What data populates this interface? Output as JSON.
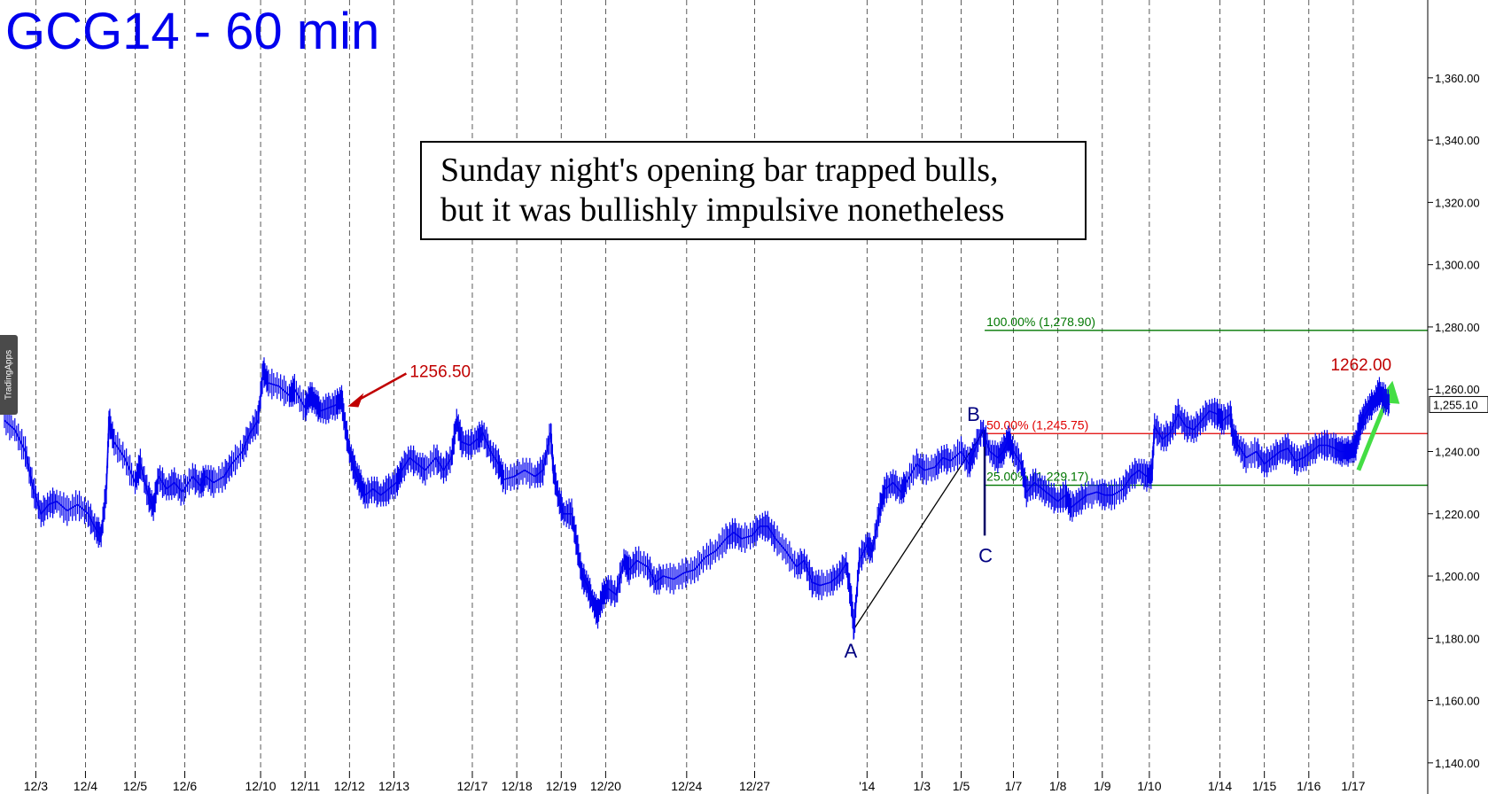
{
  "chart_data": {
    "type": "line",
    "title": "GCG14 - 60 min",
    "annotation": [
      "Sunday night's opening bar trapped bulls,",
      "but it was bullishly impulsive nonetheless"
    ],
    "y_axis": {
      "range": [
        1130,
        1385
      ],
      "ticks": [
        1140,
        1160,
        1180,
        1200,
        1220,
        1240,
        1260,
        1280,
        1300,
        1320,
        1340,
        1360
      ],
      "tick_labels": [
        "1,140.00",
        "1,160.00",
        "1,180.00",
        "1,200.00",
        "1,220.00",
        "1,240.00",
        "1,260.00",
        "1,280.00",
        "1,300.00",
        "1,320.00",
        "1,340.00",
        "1,360.00"
      ],
      "side": "right",
      "last_price": "1,255.10"
    },
    "x_axis": {
      "type": "session index (hourly, 25 sessions)",
      "range": [
        0,
        25.3
      ],
      "ticks": [
        {
          "x": 0.6,
          "label": "12/3"
        },
        {
          "x": 1.55,
          "label": "12/4"
        },
        {
          "x": 2.5,
          "label": "12/5"
        },
        {
          "x": 3.45,
          "label": "12/6"
        },
        {
          "x": 4.9,
          "label": "12/10"
        },
        {
          "x": 5.75,
          "label": "12/11"
        },
        {
          "x": 6.6,
          "label": "12/12"
        },
        {
          "x": 7.45,
          "label": "12/13"
        },
        {
          "x": 8.95,
          "label": "12/17"
        },
        {
          "x": 9.8,
          "label": "12/18"
        },
        {
          "x": 10.65,
          "label": "12/19"
        },
        {
          "x": 11.5,
          "label": "12/20"
        },
        {
          "x": 13.05,
          "label": "12/24"
        },
        {
          "x": 14.35,
          "label": "12/27"
        },
        {
          "x": 16.5,
          "label": "'14"
        },
        {
          "x": 17.55,
          "label": "1/3"
        },
        {
          "x": 18.3,
          "label": "1/5"
        },
        {
          "x": 19.3,
          "label": "1/7"
        },
        {
          "x": 20.15,
          "label": "1/8"
        },
        {
          "x": 21.0,
          "label": "1/9"
        },
        {
          "x": 21.9,
          "label": "1/10"
        },
        {
          "x": 23.25,
          "label": "1/14"
        },
        {
          "x": 24.1,
          "label": "1/15"
        },
        {
          "x": 24.95,
          "label": "1/16"
        },
        {
          "x": 25.8,
          "label": "1/17"
        }
      ]
    },
    "series": [
      {
        "color": "#0000ee",
        "points": [
          [
            0.0,
            1250
          ],
          [
            0.2,
            1247
          ],
          [
            0.4,
            1240
          ],
          [
            0.55,
            1228
          ],
          [
            0.7,
            1220
          ],
          [
            0.85,
            1223
          ],
          [
            1.0,
            1224
          ],
          [
            1.2,
            1221
          ],
          [
            1.4,
            1223
          ],
          [
            1.6,
            1220
          ],
          [
            1.75,
            1215
          ],
          [
            1.85,
            1213
          ],
          [
            1.95,
            1228
          ],
          [
            2.0,
            1250
          ],
          [
            2.1,
            1243
          ],
          [
            2.3,
            1238
          ],
          [
            2.5,
            1230
          ],
          [
            2.6,
            1236
          ],
          [
            2.75,
            1226
          ],
          [
            2.85,
            1222
          ],
          [
            2.95,
            1232
          ],
          [
            3.1,
            1228
          ],
          [
            3.25,
            1230
          ],
          [
            3.4,
            1227
          ],
          [
            3.6,
            1232
          ],
          [
            3.75,
            1229
          ],
          [
            3.85,
            1232
          ],
          [
            4.0,
            1230
          ],
          [
            4.2,
            1232
          ],
          [
            4.35,
            1236
          ],
          [
            4.55,
            1240
          ],
          [
            4.7,
            1246
          ],
          [
            4.85,
            1250
          ],
          [
            4.95,
            1266
          ],
          [
            5.05,
            1262
          ],
          [
            5.25,
            1261
          ],
          [
            5.45,
            1258
          ],
          [
            5.55,
            1260
          ],
          [
            5.75,
            1254
          ],
          [
            5.85,
            1258
          ],
          [
            5.95,
            1256
          ],
          [
            6.05,
            1253
          ],
          [
            6.2,
            1254
          ],
          [
            6.35,
            1255
          ],
          [
            6.45,
            1257
          ],
          [
            6.5,
            1250
          ],
          [
            6.6,
            1240
          ],
          [
            6.7,
            1234
          ],
          [
            6.8,
            1230
          ],
          [
            6.9,
            1226
          ],
          [
            7.05,
            1228
          ],
          [
            7.2,
            1226
          ],
          [
            7.35,
            1228
          ],
          [
            7.5,
            1230
          ],
          [
            7.6,
            1234
          ],
          [
            7.75,
            1238
          ],
          [
            7.9,
            1236
          ],
          [
            8.05,
            1234
          ],
          [
            8.25,
            1238
          ],
          [
            8.4,
            1234
          ],
          [
            8.55,
            1238
          ],
          [
            8.65,
            1250
          ],
          [
            8.75,
            1243
          ],
          [
            8.9,
            1242
          ],
          [
            9.05,
            1244
          ],
          [
            9.15,
            1246
          ],
          [
            9.3,
            1240
          ],
          [
            9.45,
            1236
          ],
          [
            9.55,
            1231
          ],
          [
            9.75,
            1232
          ],
          [
            9.95,
            1234
          ],
          [
            10.15,
            1232
          ],
          [
            10.3,
            1234
          ],
          [
            10.45,
            1246
          ],
          [
            10.5,
            1234
          ],
          [
            10.6,
            1225
          ],
          [
            10.7,
            1220
          ],
          [
            10.85,
            1220
          ],
          [
            10.95,
            1210
          ],
          [
            11.05,
            1200
          ],
          [
            11.15,
            1197
          ],
          [
            11.25,
            1192
          ],
          [
            11.35,
            1188
          ],
          [
            11.45,
            1194
          ],
          [
            11.55,
            1196
          ],
          [
            11.7,
            1194
          ],
          [
            11.85,
            1205
          ],
          [
            11.95,
            1202
          ],
          [
            12.1,
            1205
          ],
          [
            12.3,
            1203
          ],
          [
            12.45,
            1198
          ],
          [
            12.6,
            1200
          ],
          [
            12.8,
            1199
          ],
          [
            13.0,
            1201
          ],
          [
            13.2,
            1202
          ],
          [
            13.4,
            1206
          ],
          [
            13.6,
            1208
          ],
          [
            13.8,
            1212
          ],
          [
            13.95,
            1214
          ],
          [
            14.1,
            1212
          ],
          [
            14.3,
            1213
          ],
          [
            14.45,
            1216
          ],
          [
            14.6,
            1216
          ],
          [
            14.75,
            1212
          ],
          [
            14.95,
            1208
          ],
          [
            15.15,
            1203
          ],
          [
            15.3,
            1205
          ],
          [
            15.45,
            1198
          ],
          [
            15.6,
            1197
          ],
          [
            15.8,
            1198
          ],
          [
            15.95,
            1200
          ],
          [
            16.1,
            1204
          ],
          [
            16.2,
            1192
          ],
          [
            16.25,
            1183
          ],
          [
            16.35,
            1205
          ],
          [
            16.5,
            1210
          ],
          [
            16.6,
            1208
          ],
          [
            16.75,
            1222
          ],
          [
            16.85,
            1228
          ],
          [
            17.0,
            1230
          ],
          [
            17.15,
            1227
          ],
          [
            17.25,
            1230
          ],
          [
            17.45,
            1236
          ],
          [
            17.6,
            1234
          ],
          [
            17.8,
            1235
          ],
          [
            17.95,
            1238
          ],
          [
            18.1,
            1237
          ],
          [
            18.3,
            1240
          ],
          [
            18.45,
            1236
          ],
          [
            18.55,
            1240
          ],
          [
            18.7,
            1247
          ],
          [
            18.85,
            1240
          ],
          [
            19.0,
            1238
          ],
          [
            19.1,
            1240
          ],
          [
            19.2,
            1244
          ],
          [
            19.3,
            1240
          ],
          [
            19.45,
            1236
          ],
          [
            19.55,
            1227
          ],
          [
            19.7,
            1230
          ],
          [
            19.85,
            1228
          ],
          [
            20.0,
            1226
          ],
          [
            20.15,
            1224
          ],
          [
            20.3,
            1226
          ],
          [
            20.4,
            1222
          ],
          [
            20.55,
            1224
          ],
          [
            20.7,
            1226
          ],
          [
            20.9,
            1227
          ],
          [
            21.05,
            1226
          ],
          [
            21.2,
            1226
          ],
          [
            21.4,
            1228
          ],
          [
            21.55,
            1232
          ],
          [
            21.7,
            1234
          ],
          [
            21.85,
            1232
          ],
          [
            21.95,
            1233
          ],
          [
            22.0,
            1248
          ],
          [
            22.15,
            1244
          ],
          [
            22.3,
            1246
          ],
          [
            22.45,
            1252
          ],
          [
            22.6,
            1248
          ],
          [
            22.75,
            1247
          ],
          [
            22.9,
            1250
          ],
          [
            23.05,
            1253
          ],
          [
            23.2,
            1252
          ],
          [
            23.3,
            1250
          ],
          [
            23.45,
            1252
          ],
          [
            23.5,
            1245
          ],
          [
            23.6,
            1242
          ],
          [
            23.75,
            1238
          ],
          [
            23.95,
            1240
          ],
          [
            24.1,
            1236
          ],
          [
            24.25,
            1238
          ],
          [
            24.4,
            1240
          ],
          [
            24.55,
            1241
          ],
          [
            24.7,
            1237
          ],
          [
            24.85,
            1238
          ],
          [
            25.0,
            1240
          ],
          [
            25.15,
            1242
          ],
          [
            25.3,
            1242
          ],
          [
            25.45,
            1241
          ],
          [
            25.55,
            1240
          ],
          [
            25.65,
            1240
          ],
          [
            25.75,
            1240
          ],
          [
            25.85,
            1242
          ],
          [
            25.92,
            1248
          ],
          [
            26.0,
            1251
          ],
          [
            26.1,
            1254
          ],
          [
            26.2,
            1256
          ],
          [
            26.3,
            1259
          ],
          [
            26.4,
            1257
          ],
          [
            26.5,
            1255
          ]
        ]
      }
    ],
    "fib_levels": [
      {
        "label": "100.00% (1,278.90)",
        "value": 1278.9,
        "color": "#007700",
        "x_start": 18.75
      },
      {
        "label": "50.00% (1,245.75)",
        "value": 1245.75,
        "color": "#e00000",
        "x_start": 18.75
      },
      {
        "label": "25.00% (1,229.17)",
        "value": 1229.17,
        "color": "#007700",
        "x_start": 18.75
      }
    ],
    "wave_labels": [
      {
        "label": "A",
        "x": 16.25,
        "value": 1183
      },
      {
        "label": "B",
        "x": 18.75,
        "value": 1247
      },
      {
        "label": "C",
        "x": 18.75,
        "value": 1213
      }
    ],
    "price_callouts": [
      {
        "label": "1256.50",
        "color": "#c00000",
        "x": 6.5,
        "value": 1256.5
      },
      {
        "label": "1262.00",
        "color": "#c00000",
        "x": 26.3,
        "value": 1262
      }
    ],
    "grid": {
      "vertical_dashed": true,
      "horizontal": false
    },
    "colors": {
      "price": "#0000ee",
      "title": "#0000ee",
      "red": "#c00000",
      "green_arrow": "#44dd44",
      "background": "#ffffff",
      "plot_bg": "#e9e9e9"
    }
  },
  "side_tab": {
    "label": "TradingApps"
  }
}
